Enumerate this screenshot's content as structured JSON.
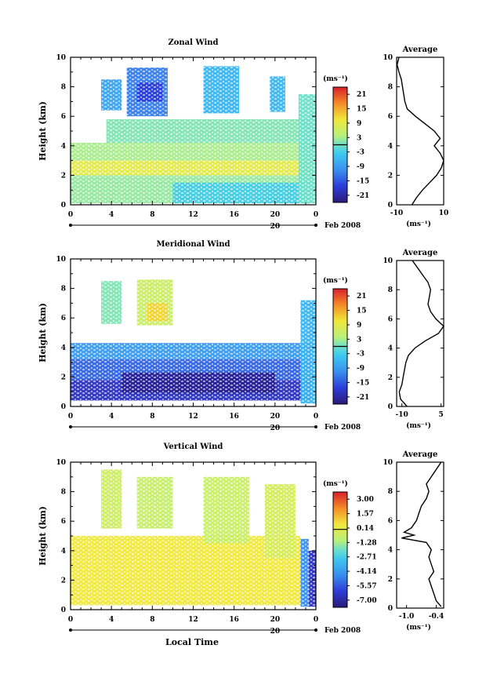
{
  "figure": {
    "date_label": "Feb 2008",
    "day_label": "20",
    "xlabel": "Local Time",
    "ylabel": "Height (km)",
    "unit": "(ms⁻¹)",
    "avg_title": "Average",
    "avg_xlabel": "(ms⁻¹)"
  },
  "chart_data": [
    {
      "type": "heatmap",
      "title": "Zonal Wind",
      "xlabel": "",
      "ylabel": "Height (km)",
      "x_ticks": [
        "0",
        "4",
        "8",
        "12",
        "16",
        "20",
        "0"
      ],
      "x_range": [
        0,
        24
      ],
      "y_ticks": [
        "0",
        "2",
        "4",
        "6",
        "8",
        "10"
      ],
      "ylim": [
        0,
        10
      ],
      "colorbar": {
        "label": "(ms⁻¹)",
        "ticks": [
          "21",
          "15",
          "9",
          "3",
          "-3",
          "-9",
          "-15",
          "-21"
        ],
        "range": [
          -24,
          24
        ]
      },
      "regions": [
        {
          "t0": 0,
          "t1": 23.5,
          "h0": 2.0,
          "h1": 3.0,
          "value": 9
        },
        {
          "t0": 0,
          "t1": 23.5,
          "h0": 3.0,
          "h1": 4.2,
          "value": 3
        },
        {
          "t0": 3.5,
          "t1": 23.5,
          "h0": 4.2,
          "h1": 5.8,
          "value": 1
        },
        {
          "t0": 0,
          "t1": 23.5,
          "h0": 0.1,
          "h1": 2.0,
          "value": 2
        },
        {
          "t0": 10,
          "t1": 23.5,
          "h0": 0.1,
          "h1": 1.5,
          "value": -3
        },
        {
          "t0": 5.5,
          "t1": 9.5,
          "h0": 6.0,
          "h1": 9.3,
          "value": -12
        },
        {
          "t0": 6.5,
          "t1": 9.0,
          "h0": 7.0,
          "h1": 8.3,
          "value": -17
        },
        {
          "t0": 3.0,
          "t1": 5.0,
          "h0": 6.4,
          "h1": 8.5,
          "value": -8
        },
        {
          "t0": 13.0,
          "t1": 16.5,
          "h0": 6.2,
          "h1": 9.4,
          "value": -6
        },
        {
          "t0": 19.5,
          "t1": 21.0,
          "h0": 6.3,
          "h1": 8.7,
          "value": -6
        },
        {
          "t0": 22.3,
          "t1": 24.0,
          "h0": 0.1,
          "h1": 7.5,
          "value": 0
        }
      ],
      "average": {
        "xlim": [
          -10,
          10
        ],
        "x_ticks": [
          "-10",
          "10"
        ],
        "y_ticks": [
          "0",
          "2",
          "4",
          "6",
          "8",
          "10"
        ],
        "height": [
          0,
          0.5,
          1,
          1.5,
          2,
          2.5,
          3,
          3.5,
          4,
          4.5,
          5,
          5.5,
          6,
          6.5,
          7,
          7.5,
          8,
          8.5,
          9,
          9.5,
          10
        ],
        "value": [
          -3.5,
          -1.5,
          1.0,
          4.0,
          7.0,
          9.0,
          10.0,
          8.5,
          6.0,
          8.5,
          6.0,
          2.0,
          -2.0,
          -5.5,
          -6.5,
          -7.0,
          -7.5,
          -8.0,
          -9.0,
          -9.8,
          -9.0
        ]
      }
    },
    {
      "type": "heatmap",
      "title": "Meridional Wind",
      "xlabel": "",
      "ylabel": "Height (km)",
      "x_ticks": [
        "0",
        "4",
        "8",
        "12",
        "16",
        "20",
        "0"
      ],
      "x_range": [
        0,
        24
      ],
      "y_ticks": [
        "0",
        "2",
        "4",
        "6",
        "8",
        "10"
      ],
      "ylim": [
        0,
        10
      ],
      "colorbar": {
        "label": "(ms⁻¹)",
        "ticks": [
          "21",
          "15",
          "9",
          "3",
          "-3",
          "-9",
          "-15",
          "-21"
        ],
        "range": [
          -24,
          24
        ]
      },
      "regions": [
        {
          "t0": 0,
          "t1": 23.5,
          "h0": 3.2,
          "h1": 4.3,
          "value": -9
        },
        {
          "t0": 0,
          "t1": 23.5,
          "h0": 1.8,
          "h1": 3.2,
          "value": -14
        },
        {
          "t0": 0,
          "t1": 23.5,
          "h0": 0.4,
          "h1": 1.8,
          "value": -19
        },
        {
          "t0": 5.0,
          "t1": 20.0,
          "h0": 0.9,
          "h1": 2.3,
          "value": -22
        },
        {
          "t0": 6.5,
          "t1": 10.0,
          "h0": 5.5,
          "h1": 8.6,
          "value": 6
        },
        {
          "t0": 7.5,
          "t1": 9.5,
          "h0": 5.8,
          "h1": 7.0,
          "value": 12
        },
        {
          "t0": 3.0,
          "t1": 5.0,
          "h0": 5.6,
          "h1": 8.5,
          "value": 1
        },
        {
          "t0": 22.5,
          "t1": 24.0,
          "h0": 0.2,
          "h1": 7.2,
          "value": -6
        }
      ],
      "average": {
        "xlim": [
          -12,
          6
        ],
        "x_ticks": [
          "-10",
          "5"
        ],
        "y_ticks": [
          "0",
          "2",
          "4",
          "6",
          "8",
          "10"
        ],
        "height": [
          0,
          0.5,
          1,
          1.5,
          2,
          2.5,
          3,
          3.5,
          4,
          4.5,
          5,
          5.5,
          6,
          6.5,
          7,
          7.5,
          8,
          8.5,
          9,
          9.5,
          10
        ],
        "value": [
          -8.0,
          -10.5,
          -11.0,
          -10.0,
          -9.5,
          -9.0,
          -8.5,
          -7.5,
          -5.0,
          -1.0,
          4.0,
          6.0,
          3.0,
          1.0,
          0.0,
          0.5,
          1.0,
          0.0,
          -2.0,
          -4.0,
          -6.0
        ]
      }
    },
    {
      "type": "heatmap",
      "title": "Vertical Wind",
      "xlabel": "Local Time",
      "ylabel": "Height (km)",
      "x_ticks": [
        "0",
        "4",
        "8",
        "12",
        "16",
        "20",
        "0"
      ],
      "x_range": [
        0,
        24
      ],
      "y_ticks": [
        "0",
        "2",
        "4",
        "6",
        "8",
        "10"
      ],
      "ylim": [
        0,
        10
      ],
      "colorbar": {
        "label": "(ms⁻¹)",
        "ticks": [
          "3.00",
          "1.57",
          "0.14",
          "-1.28",
          "-2.71",
          "-4.14",
          "-5.57",
          "-7.00"
        ],
        "range": [
          -7.7,
          3.7
        ]
      },
      "regions": [
        {
          "t0": 0,
          "t1": 22.5,
          "h0": 0.3,
          "h1": 3.7,
          "value": 0.5
        },
        {
          "t0": 0,
          "t1": 22.5,
          "h0": 3.7,
          "h1": 5.0,
          "value": 0.5
        },
        {
          "t0": 6.5,
          "t1": 10.0,
          "h0": 5.5,
          "h1": 9.0,
          "value": -0.7
        },
        {
          "t0": 3.0,
          "t1": 5.0,
          "h0": 5.5,
          "h1": 9.5,
          "value": -0.5
        },
        {
          "t0": 13.0,
          "t1": 17.5,
          "h0": 4.5,
          "h1": 9.0,
          "value": -0.6
        },
        {
          "t0": 19.0,
          "t1": 22.0,
          "h0": 3.5,
          "h1": 8.5,
          "value": -0.3
        },
        {
          "t0": 22.5,
          "t1": 23.3,
          "h0": 0.2,
          "h1": 4.8,
          "value": -4.5
        },
        {
          "t0": 23.3,
          "t1": 24.0,
          "h0": 0.2,
          "h1": 4.0,
          "value": -6.5
        }
      ],
      "average": {
        "xlim": [
          -1.2,
          -0.25
        ],
        "x_ticks": [
          "-1.0",
          "-0.4"
        ],
        "y_ticks": [
          "0",
          "2",
          "4",
          "6",
          "8",
          "10"
        ],
        "height": [
          0.1,
          0.5,
          1,
          1.5,
          2,
          2.5,
          3,
          3.5,
          4,
          4.5,
          4.8,
          5.0,
          5.2,
          5.5,
          6,
          6.5,
          7,
          7.5,
          8,
          8.5,
          9,
          9.5,
          10
        ],
        "value": [
          -0.3,
          -0.4,
          -0.45,
          -0.5,
          -0.55,
          -0.45,
          -0.5,
          -0.55,
          -0.5,
          -0.6,
          -1.1,
          -0.85,
          -1.05,
          -0.9,
          -0.8,
          -0.75,
          -0.7,
          -0.6,
          -0.55,
          -0.6,
          -0.5,
          -0.4,
          -0.3
        ]
      }
    }
  ]
}
